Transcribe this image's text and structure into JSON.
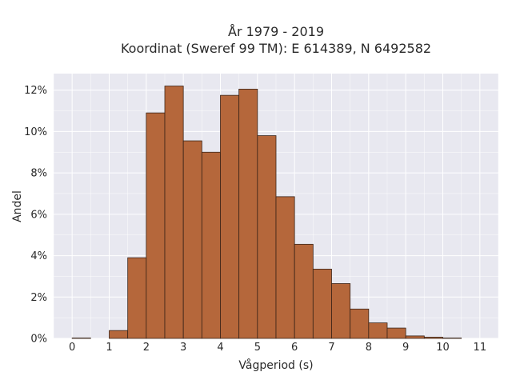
{
  "chart_data": {
    "type": "bar",
    "title_line1": "År 1979 - 2019",
    "title_line2": "Koordinat (Sweref 99 TM): E 614389, N 6492582",
    "xlabel": "Vågperiod (s)",
    "ylabel": "Andel",
    "x_ticks": [
      "0",
      "1",
      "2",
      "3",
      "4",
      "5",
      "6",
      "7",
      "8",
      "9",
      "10",
      "11"
    ],
    "y_ticks": [
      "0%",
      "2%",
      "4%",
      "6%",
      "8%",
      "10%",
      "12%"
    ],
    "xlim": [
      -0.5,
      11.5
    ],
    "ylim": [
      0,
      12.8
    ],
    "y_unit": "%",
    "bin_width": 0.5,
    "bars": [
      {
        "x0": 0.0,
        "value": 0.02
      },
      {
        "x0": 0.5,
        "value": 0.0
      },
      {
        "x0": 1.0,
        "value": 0.38
      },
      {
        "x0": 1.5,
        "value": 3.9
      },
      {
        "x0": 2.0,
        "value": 10.9
      },
      {
        "x0": 2.5,
        "value": 12.2
      },
      {
        "x0": 3.0,
        "value": 9.55
      },
      {
        "x0": 3.5,
        "value": 9.0
      },
      {
        "x0": 4.0,
        "value": 11.75
      },
      {
        "x0": 4.5,
        "value": 12.05
      },
      {
        "x0": 5.0,
        "value": 9.8
      },
      {
        "x0": 5.5,
        "value": 6.85
      },
      {
        "x0": 6.0,
        "value": 4.55
      },
      {
        "x0": 6.5,
        "value": 3.35
      },
      {
        "x0": 7.0,
        "value": 2.65
      },
      {
        "x0": 7.5,
        "value": 1.42
      },
      {
        "x0": 8.0,
        "value": 0.75
      },
      {
        "x0": 8.5,
        "value": 0.5
      },
      {
        "x0": 9.0,
        "value": 0.12
      },
      {
        "x0": 9.5,
        "value": 0.06
      },
      {
        "x0": 10.0,
        "value": 0.02
      }
    ],
    "bar_color": "#b5673b",
    "bar_edge_color": "#3a2418",
    "plot_bg": "#e8e8f0",
    "grid": true,
    "grid_color": "#ffffff"
  }
}
